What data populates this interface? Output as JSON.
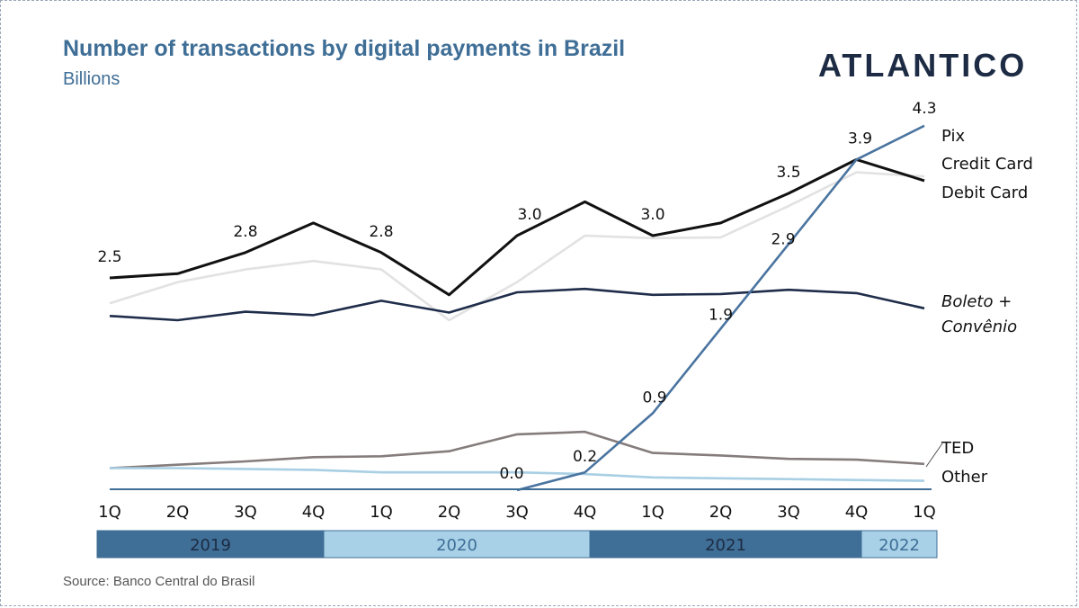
{
  "title": "Number of transactions by digital payments in Brazil",
  "subtitle": "Billions",
  "logo": "ATLANTICO",
  "source": "Source: Banco Central do Brasil",
  "colors": {
    "title": "#3f6e96",
    "pix": "#4a74a0",
    "credit": "#e2e2e2",
    "debit": "#111111",
    "boleto": "#1f2d4a",
    "ted": "#857c7c",
    "other": "#a8cfe4",
    "year_dark": "#3f6e96",
    "year_light": "#a8d1e8"
  },
  "chart_data": {
    "type": "line",
    "categories": [
      "1Q",
      "2Q",
      "3Q",
      "4Q",
      "1Q",
      "2Q",
      "3Q",
      "4Q",
      "1Q",
      "2Q",
      "3Q",
      "4Q",
      "1Q"
    ],
    "years": [
      {
        "label": "2019",
        "start": 0,
        "end": 3
      },
      {
        "label": "2020",
        "start": 4,
        "end": 7
      },
      {
        "label": "2021",
        "start": 8,
        "end": 11
      },
      {
        "label": "2022",
        "start": 12,
        "end": 12
      }
    ],
    "ylim": [
      0,
      4.5
    ],
    "series": [
      {
        "name": "Credit Card",
        "key": "credit",
        "values": [
          2.2,
          2.45,
          2.6,
          2.7,
          2.6,
          2.0,
          2.45,
          3.0,
          2.97,
          2.98,
          3.35,
          3.75,
          3.7
        ],
        "labels": {}
      },
      {
        "name": "Debit Card",
        "key": "debit",
        "values": [
          2.5,
          2.55,
          2.8,
          3.15,
          2.8,
          2.3,
          3.0,
          3.4,
          3.0,
          3.15,
          3.5,
          3.9,
          3.65
        ],
        "labels": {
          "0": "2.5",
          "2": "2.8",
          "4": "2.8",
          "6": "3.0",
          "8": "3.0",
          "10": "3.5",
          "11": "3.9"
        }
      },
      {
        "name": "Boleto + Convênio",
        "key": "boleto",
        "values": [
          2.05,
          2.0,
          2.1,
          2.06,
          2.23,
          2.09,
          2.33,
          2.37,
          2.3,
          2.31,
          2.36,
          2.32,
          2.14
        ],
        "labels": {}
      },
      {
        "name": "TED",
        "key": "ted",
        "values": [
          0.25,
          0.29,
          0.33,
          0.38,
          0.39,
          0.45,
          0.65,
          0.68,
          0.43,
          0.4,
          0.36,
          0.35,
          0.3
        ],
        "labels": {}
      },
      {
        "name": "Other",
        "key": "other",
        "values": [
          0.25,
          0.25,
          0.24,
          0.23,
          0.2,
          0.2,
          0.2,
          0.18,
          0.14,
          0.13,
          0.12,
          0.11,
          0.1
        ],
        "labels": {}
      },
      {
        "name": "Pix",
        "key": "pix",
        "values": [
          null,
          null,
          null,
          null,
          null,
          null,
          0.0,
          0.2,
          0.9,
          1.9,
          2.9,
          3.9,
          4.3
        ],
        "labels": {
          "6": "0.0",
          "7": "0.2",
          "8": "0.9",
          "9": "1.9",
          "10": "2.9",
          "12": "4.3"
        }
      }
    ],
    "series_label_lines": {
      "Boleto + Convênio": [
        "Boleto +",
        "Convênio"
      ]
    }
  }
}
